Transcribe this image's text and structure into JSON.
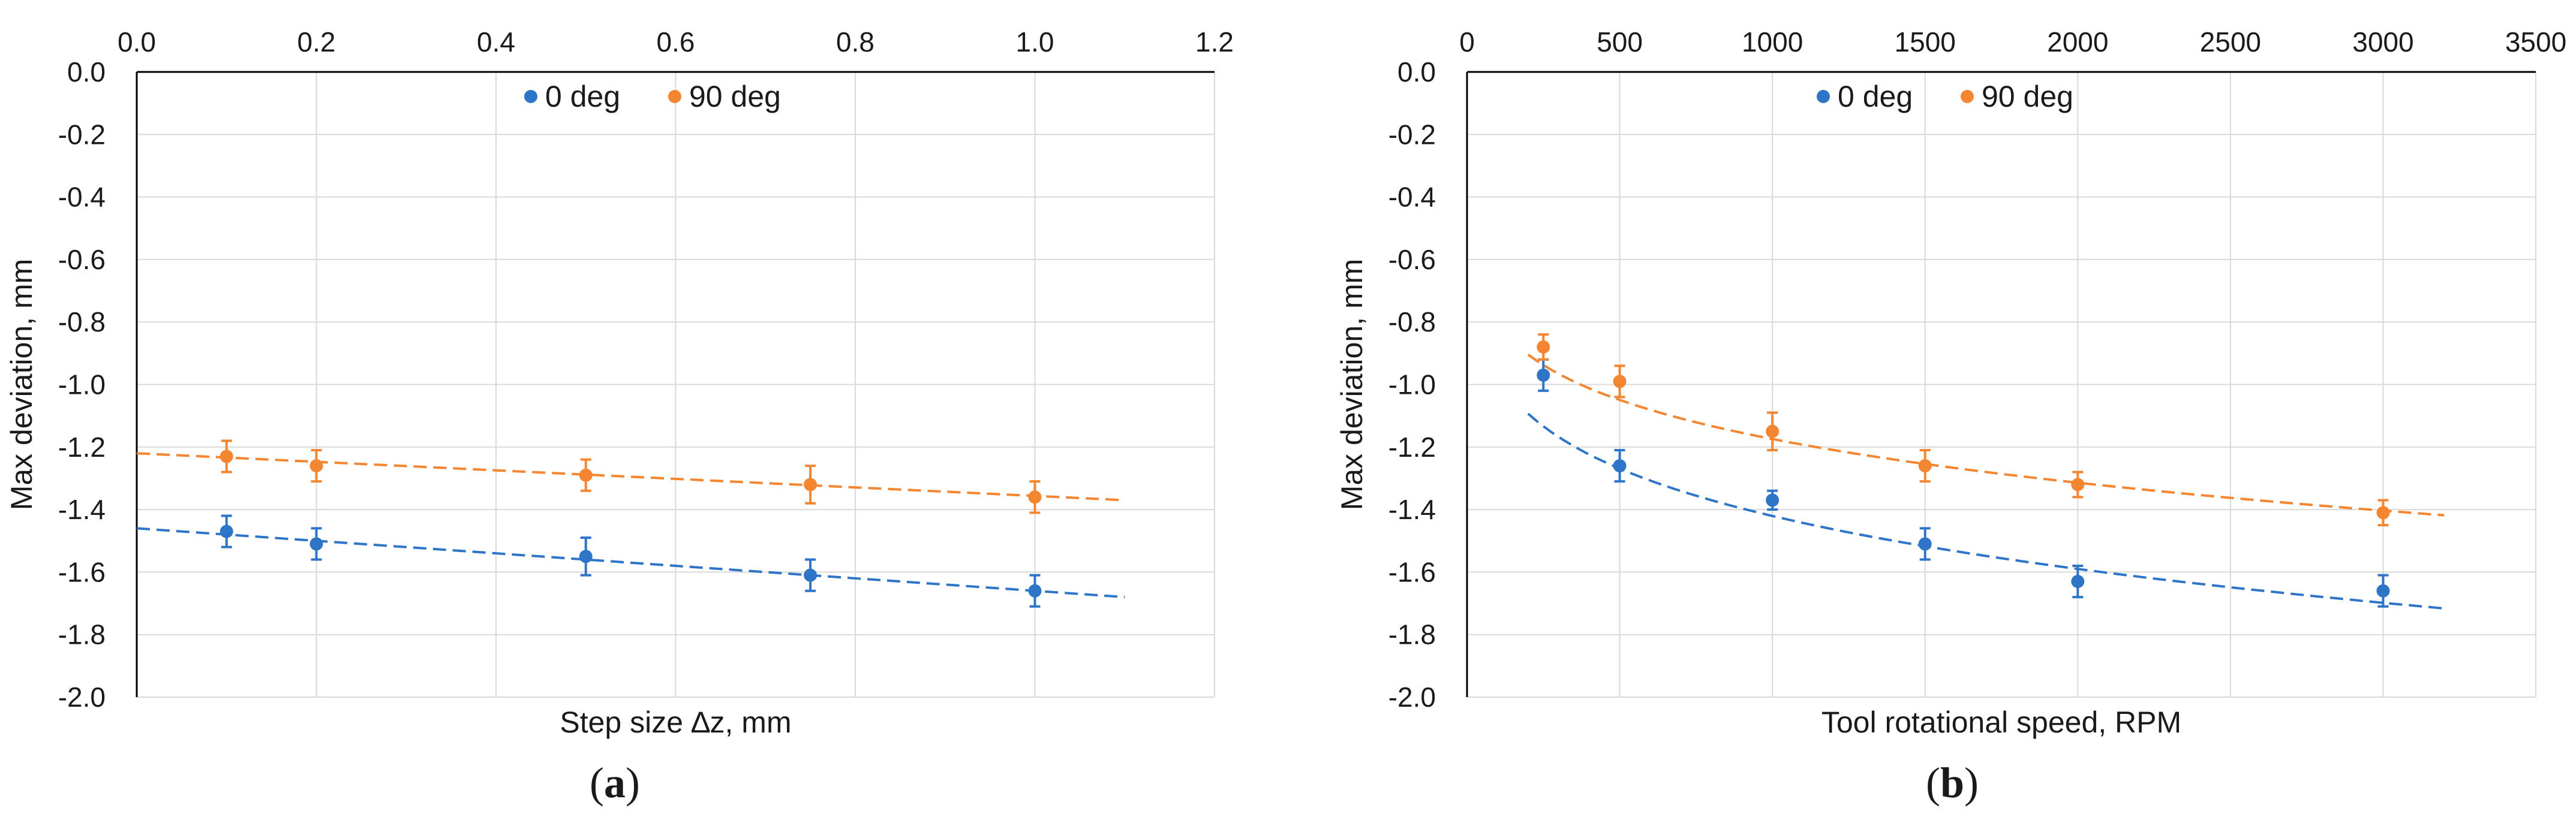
{
  "colors": {
    "series_0deg": "#2e75c7",
    "series_90deg": "#f58631"
  },
  "chart_data": [
    {
      "type": "scatter",
      "panel": "a",
      "panel_label": {
        "open": "(",
        "letter": "a",
        "close": ")"
      },
      "xlabel": "Step size ∆z,  mm",
      "ylabel": "Max  deviation,  mm",
      "xlim": [
        0,
        1.2
      ],
      "ylim": [
        -2.0,
        0.0
      ],
      "x_ticks": [
        "0.0",
        "0.2",
        "0.4",
        "0.6",
        "0.8",
        "1.0",
        "1.2"
      ],
      "x_tick_values": [
        0,
        0.2,
        0.4,
        0.6,
        0.8,
        1.0,
        1.2
      ],
      "y_ticks": [
        "0.0",
        "-0.2",
        "-0.4",
        "-0.6",
        "-0.8",
        "-1.0",
        "-1.2",
        "-1.4",
        "-1.6",
        "-1.8",
        "-2.0"
      ],
      "y_tick_values": [
        0,
        -0.2,
        -0.4,
        -0.6,
        -0.8,
        -1.0,
        -1.2,
        -1.4,
        -1.6,
        -1.8,
        -2.0
      ],
      "x_axis_position": "top",
      "grid": true,
      "legend_placement": "top-center",
      "trendline": "linear",
      "series": [
        {
          "name": "0 deg",
          "color": "#2e75c7",
          "points": [
            {
              "x": 0.1,
              "y": -1.47,
              "err": 0.05
            },
            {
              "x": 0.2,
              "y": -1.51,
              "err": 0.05
            },
            {
              "x": 0.5,
              "y": -1.55,
              "err": 0.06
            },
            {
              "x": 0.75,
              "y": -1.61,
              "err": 0.05
            },
            {
              "x": 1.0,
              "y": -1.66,
              "err": 0.05
            }
          ],
          "trend": {
            "x_start": 0.0,
            "x_end": 1.1,
            "y_start": -1.46,
            "y_end": -1.68
          }
        },
        {
          "name": "90 deg",
          "color": "#f58631",
          "points": [
            {
              "x": 0.1,
              "y": -1.23,
              "err": 0.05
            },
            {
              "x": 0.2,
              "y": -1.26,
              "err": 0.05
            },
            {
              "x": 0.5,
              "y": -1.29,
              "err": 0.05
            },
            {
              "x": 0.75,
              "y": -1.32,
              "err": 0.06
            },
            {
              "x": 1.0,
              "y": -1.36,
              "err": 0.05
            }
          ],
          "trend": {
            "x_start": 0.0,
            "x_end": 1.1,
            "y_start": -1.22,
            "y_end": -1.37
          }
        }
      ]
    },
    {
      "type": "scatter",
      "panel": "b",
      "panel_label": {
        "open": "(",
        "letter": "b",
        "close": ")"
      },
      "xlabel": "Tool rotational speed,  RPM",
      "ylabel": "Max  deviation,  mm",
      "xlim": [
        0,
        3500
      ],
      "ylim": [
        -2.0,
        0.0
      ],
      "x_ticks": [
        "0",
        "500",
        "1000",
        "1500",
        "2000",
        "2500",
        "3000",
        "3500"
      ],
      "x_tick_values": [
        0,
        500,
        1000,
        1500,
        2000,
        2500,
        3000,
        3500
      ],
      "y_ticks": [
        "0.0",
        "-0.2",
        "-0.4",
        "-0.6",
        "-0.8",
        "-1.0",
        "-1.2",
        "-1.4",
        "-1.6",
        "-1.8",
        "-2.0"
      ],
      "y_tick_values": [
        0,
        -0.2,
        -0.4,
        -0.6,
        -0.8,
        -1.0,
        -1.2,
        -1.4,
        -1.6,
        -1.8,
        -2.0
      ],
      "x_axis_position": "top",
      "grid": true,
      "legend_placement": "top-center",
      "trendline": "power",
      "series": [
        {
          "name": "0 deg",
          "color": "#2e75c7",
          "points": [
            {
              "x": 250,
              "y": -0.97,
              "err": 0.05
            },
            {
              "x": 500,
              "y": -1.26,
              "err": 0.05
            },
            {
              "x": 1000,
              "y": -1.37,
              "err": 0.03
            },
            {
              "x": 1500,
              "y": -1.51,
              "err": 0.05
            },
            {
              "x": 2000,
              "y": -1.63,
              "err": 0.05
            },
            {
              "x": 3000,
              "y": -1.66,
              "err": 0.05
            }
          ],
          "trend": {
            "a": -0.462,
            "b": 0.1626,
            "x_start": 200,
            "x_end": 3200
          }
        },
        {
          "name": "90 deg",
          "color": "#f58631",
          "points": [
            {
              "x": 250,
              "y": -0.88,
              "err": 0.04
            },
            {
              "x": 500,
              "y": -0.99,
              "err": 0.05
            },
            {
              "x": 1000,
              "y": -1.15,
              "err": 0.06
            },
            {
              "x": 1500,
              "y": -1.26,
              "err": 0.05
            },
            {
              "x": 2000,
              "y": -1.32,
              "err": 0.04
            },
            {
              "x": 3000,
              "y": -1.41,
              "err": 0.04
            }
          ],
          "trend": {
            "a": -0.383,
            "b": 0.1622,
            "x_start": 200,
            "x_end": 3200
          }
        }
      ]
    }
  ]
}
